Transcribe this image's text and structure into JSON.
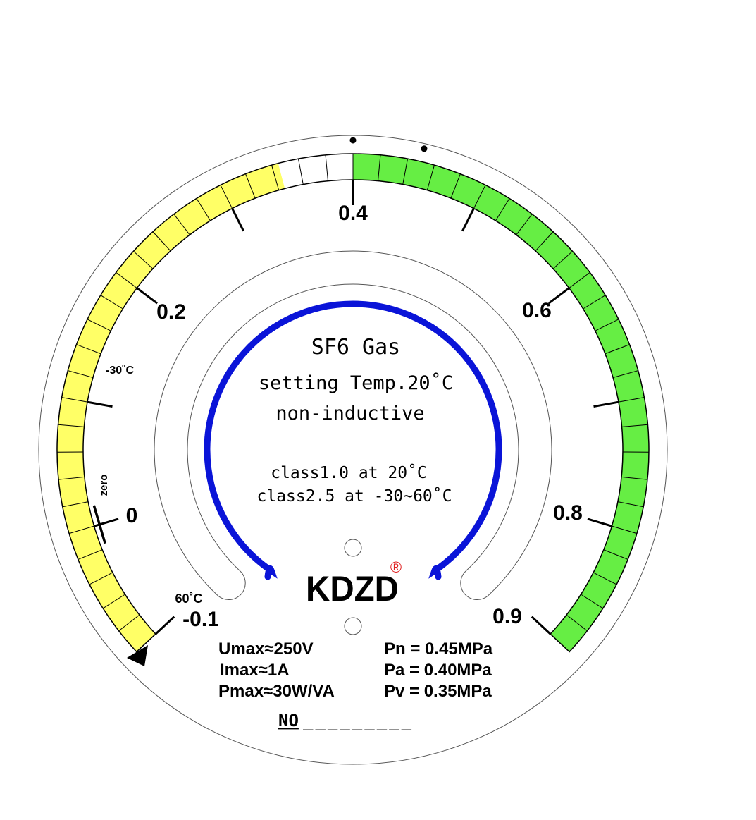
{
  "dial": {
    "title": "SF6 Gas",
    "setting": "setting Temp.20˚C",
    "type": "non-inductive",
    "class_a": "class1.0 at 20˚C",
    "class_b": "class2.5 at -30~60˚C",
    "brand": "KDZD",
    "registered": "®",
    "serial_label": "NO",
    "serial_value": "_________"
  },
  "ratings": {
    "umax": "Umax≈250V",
    "imax": "Imax≈1A",
    "pmax": "Pmax≈30W/VA",
    "pn": "Pn = 0.45MPa",
    "pa": "Pa = 0.40MPa",
    "pv": "Pv = 0.35MPa"
  },
  "scale": {
    "min": -0.1,
    "max": 0.9,
    "cell_step": 0.02,
    "major_ticks": [
      -0.1,
      0,
      0.1,
      0.2,
      0.3,
      0.4,
      0.5,
      0.6,
      0.7,
      0.8,
      0.9
    ],
    "tick_labels": {
      "m01": "-0.1",
      "z0": "0",
      "p2": "0.2",
      "p4": "0.4",
      "p6": "0.6",
      "p8": "0.8",
      "p9": "0.9"
    },
    "temp_labels": {
      "minus30": "-30˚C",
      "zero": "zero",
      "plus60": "60˚C"
    },
    "zones": [
      {
        "from": -0.1,
        "to": 0.345,
        "color": "#ffff66"
      },
      {
        "from": 0.345,
        "to": 0.4,
        "color": "#ffffff"
      },
      {
        "from": 0.4,
        "to": 0.9,
        "color": "#66ee44"
      }
    ],
    "markers": [
      0.4,
      0.45
    ]
  },
  "colors": {
    "arc": "#0a14d8",
    "brand_mark": "#e02020",
    "outline": "#555555"
  }
}
